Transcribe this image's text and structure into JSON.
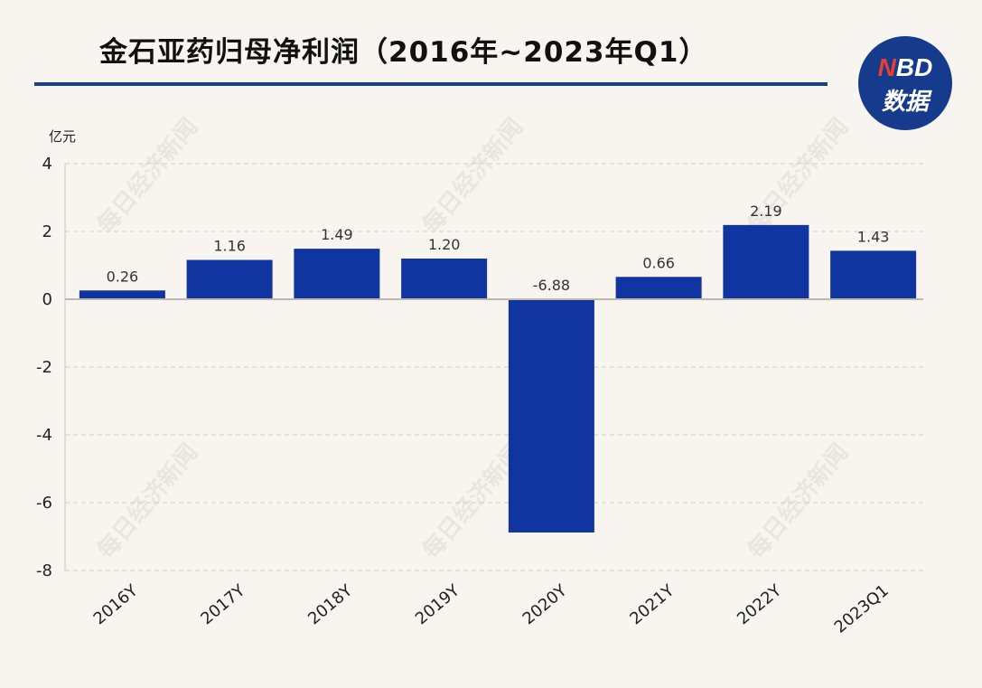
{
  "title": "金石亚药归母净利润（2016年~2023年Q1）",
  "logo": {
    "nbd_text": "NBD",
    "cn_text": "数据"
  },
  "watermark_text": "每日经济新闻",
  "colors": {
    "bar": "#1035a0",
    "title_rule": "#173f8f",
    "logo_bg": "#163b8c",
    "logo_accent": "#e8402f"
  },
  "chart_data": {
    "type": "bar",
    "ylabel": "亿元",
    "ylim": [
      -8,
      4
    ],
    "yticks": [
      4,
      2,
      0,
      -2,
      -4,
      -6,
      -8
    ],
    "grid": true,
    "categories": [
      "2016Y",
      "2017Y",
      "2018Y",
      "2019Y",
      "2020Y",
      "2021Y",
      "2022Y",
      "2023Q1"
    ],
    "values": [
      0.26,
      1.16,
      1.49,
      1.2,
      -6.88,
      0.66,
      2.19,
      1.43
    ],
    "value_labels": [
      "0.26",
      "1.16",
      "1.49",
      "1.20",
      "-6.88",
      "0.66",
      "2.19",
      "1.43"
    ]
  }
}
